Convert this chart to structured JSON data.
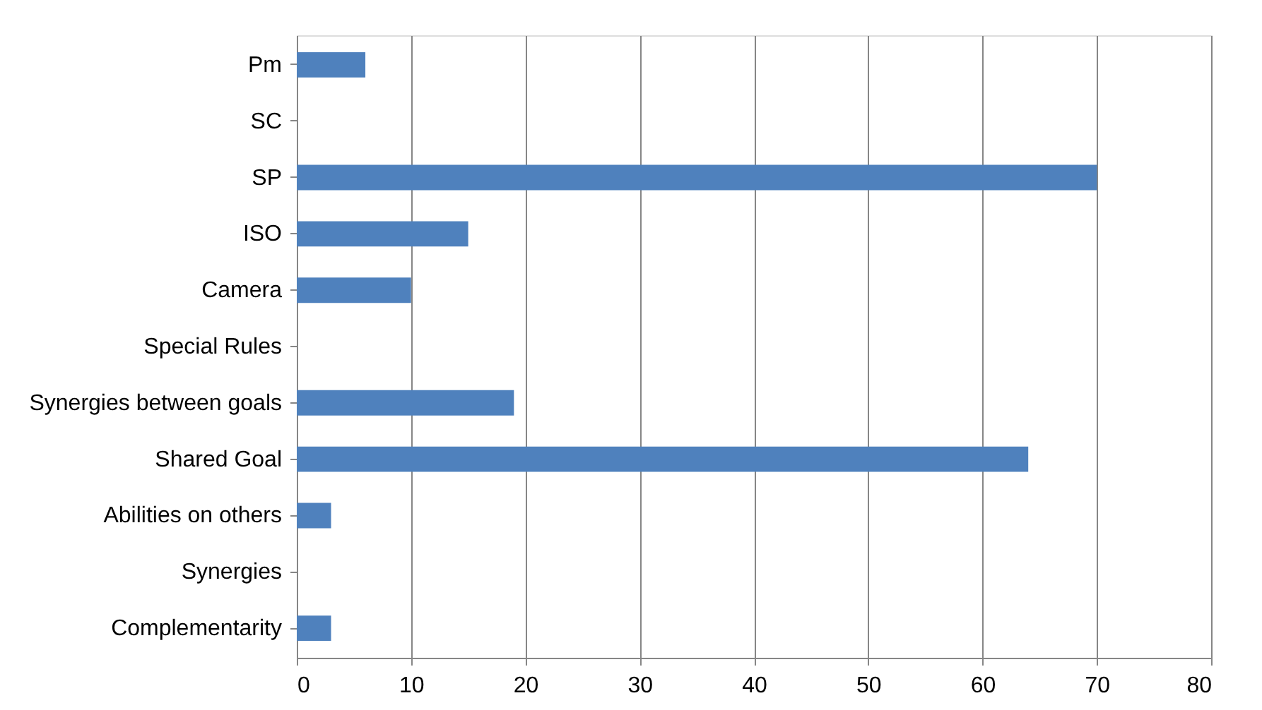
{
  "chart_data": {
    "type": "bar",
    "orientation": "horizontal",
    "categories": [
      "Pm",
      "SC",
      "SP",
      "ISO",
      "Camera",
      "Special Rules",
      "Synergies between goals",
      "Shared Goal",
      "Abilities on others",
      "Synergies",
      "Complementarity"
    ],
    "values": [
      6,
      0,
      70,
      15,
      10,
      0,
      19,
      64,
      3,
      0,
      3
    ],
    "color": "#4f81bd",
    "xlim": [
      0,
      80
    ],
    "xticks": [
      0,
      10,
      20,
      30,
      40,
      50,
      60,
      70,
      80
    ],
    "grid": "x"
  }
}
